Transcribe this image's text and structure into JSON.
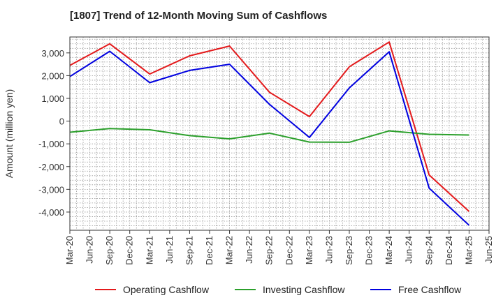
{
  "chart_data": {
    "type": "line",
    "title": "[1807]  Trend of 12-Month Moving Sum of Cashflows",
    "ylabel": "Amount (million yen)",
    "xlabel": "",
    "ylim": [
      -4800,
      3700
    ],
    "yticks": [
      3000,
      2000,
      1000,
      0,
      -1000,
      -2000,
      -3000,
      -4000
    ],
    "ytick_labels": [
      "3,000",
      "2,000",
      "1,000",
      "0",
      "-1,000",
      "-2,000",
      "-3,000",
      "-4,000"
    ],
    "x_ticks": [
      "Mar-20",
      "Jun-20",
      "Sep-20",
      "Dec-20",
      "Mar-21",
      "Jun-21",
      "Sep-21",
      "Dec-21",
      "Mar-22",
      "Jun-22",
      "Sep-22",
      "Dec-22",
      "Mar-23",
      "Jun-23",
      "Sep-23",
      "Dec-23",
      "Mar-24",
      "Jun-24",
      "Sep-24",
      "Dec-24",
      "Mar-25",
      "Jun-25"
    ],
    "grid": true,
    "legend_position": "bottom",
    "series": [
      {
        "name": "Operating Cashflow",
        "color": "#e41a1c",
        "x": [
          "Mar-20",
          "Sep-20",
          "Mar-21",
          "Sep-21",
          "Mar-22",
          "Sep-22",
          "Mar-23",
          "Sep-23",
          "Mar-24",
          "Sep-24",
          "Mar-25"
        ],
        "values": [
          2450,
          3400,
          2070,
          2870,
          3300,
          1270,
          200,
          2390,
          3480,
          -2370,
          -3970
        ]
      },
      {
        "name": "Investing Cashflow",
        "color": "#2ca02c",
        "x": [
          "Mar-20",
          "Sep-20",
          "Mar-21",
          "Sep-21",
          "Mar-22",
          "Sep-22",
          "Mar-23",
          "Sep-23",
          "Mar-24",
          "Sep-24",
          "Mar-25"
        ],
        "values": [
          -490,
          -330,
          -380,
          -640,
          -780,
          -530,
          -920,
          -930,
          -430,
          -580,
          -610
        ]
      },
      {
        "name": "Free Cashflow",
        "color": "#0000e0",
        "x": [
          "Mar-20",
          "Sep-20",
          "Mar-21",
          "Sep-21",
          "Mar-22",
          "Sep-22",
          "Mar-23",
          "Sep-23",
          "Mar-24",
          "Sep-24",
          "Mar-25"
        ],
        "values": [
          1960,
          3070,
          1690,
          2230,
          2500,
          740,
          -720,
          1460,
          3050,
          -2950,
          -4580
        ]
      }
    ]
  }
}
